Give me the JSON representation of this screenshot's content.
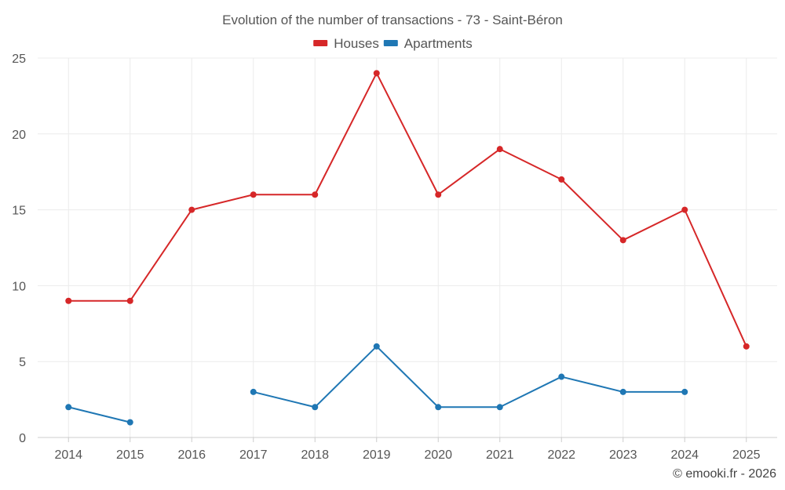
{
  "chart_data": {
    "type": "line",
    "title": "Evolution of the number of transactions - 73 - Saint-Béron",
    "categories": [
      "2014",
      "2015",
      "2016",
      "2017",
      "2018",
      "2019",
      "2020",
      "2021",
      "2022",
      "2023",
      "2024",
      "2025"
    ],
    "ylim": [
      0,
      25
    ],
    "yticks": [
      0,
      5,
      10,
      15,
      20,
      25
    ],
    "grid": true,
    "legend_position": "top-center",
    "series": [
      {
        "name": "Houses",
        "color": "#d62728",
        "values": [
          9,
          9,
          15,
          16,
          16,
          24,
          16,
          19,
          17,
          13,
          15,
          6
        ]
      },
      {
        "name": "Apartments",
        "color": "#1f77b4",
        "values": [
          2,
          1,
          null,
          3,
          2,
          6,
          2,
          2,
          4,
          3,
          3,
          null
        ]
      }
    ]
  },
  "credit": "© emooki.fr - 2026"
}
